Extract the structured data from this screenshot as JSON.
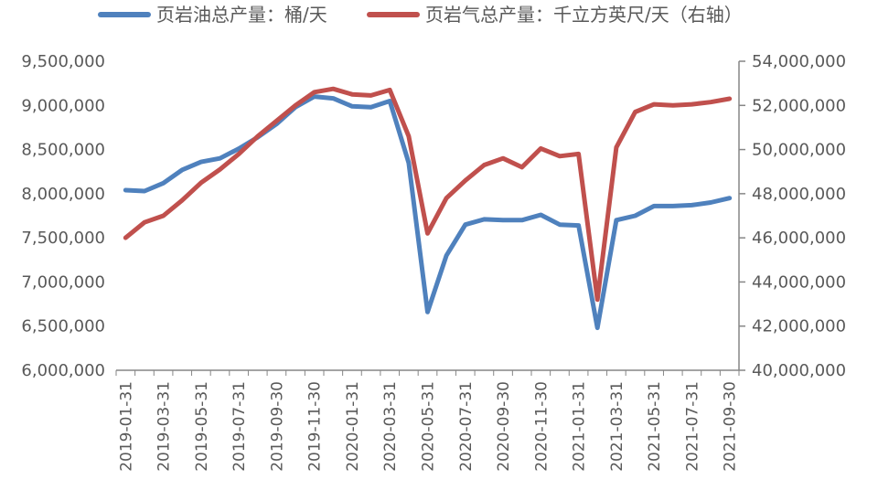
{
  "chart_data": {
    "type": "line",
    "title": "",
    "x": [
      "2019-01-31",
      "2019-02-28",
      "2019-03-31",
      "2019-04-30",
      "2019-05-31",
      "2019-06-30",
      "2019-07-31",
      "2019-08-31",
      "2019-09-30",
      "2019-10-31",
      "2019-11-30",
      "2019-12-31",
      "2020-01-31",
      "2020-02-29",
      "2020-03-31",
      "2020-04-30",
      "2020-05-31",
      "2020-06-30",
      "2020-07-31",
      "2020-08-31",
      "2020-09-30",
      "2020-10-31",
      "2020-11-30",
      "2020-12-31",
      "2021-01-31",
      "2021-02-28",
      "2021-03-31",
      "2021-04-30",
      "2021-05-31",
      "2021-06-30",
      "2021-07-31",
      "2021-08-31",
      "2021-09-30"
    ],
    "x_tick_labels": [
      "2019-01-31",
      "2019-03-31",
      "2019-05-31",
      "2019-07-31",
      "2019-09-30",
      "2019-11-30",
      "2020-01-31",
      "2020-03-31",
      "2020-05-31",
      "2020-07-31",
      "2020-09-30",
      "2020-11-30",
      "2021-01-31",
      "2021-03-31",
      "2021-05-31",
      "2021-07-31",
      "2021-09-30"
    ],
    "y_left": {
      "ylim": [
        6000000,
        9500000
      ],
      "ticks": [
        6000000,
        6500000,
        7000000,
        7500000,
        8000000,
        8500000,
        9000000,
        9500000
      ],
      "tick_labels": [
        "6,000,000",
        "6,500,000",
        "7,000,000",
        "7,500,000",
        "8,000,000",
        "8,500,000",
        "9,000,000",
        "9,500,000"
      ]
    },
    "y_right": {
      "ylim": [
        40000000,
        54000000
      ],
      "ticks": [
        40000000,
        42000000,
        44000000,
        46000000,
        48000000,
        50000000,
        52000000,
        54000000
      ],
      "tick_labels": [
        "40,000,000",
        "42,000,000",
        "44,000,000",
        "46,000,000",
        "48,000,000",
        "50,000,000",
        "52,000,000",
        "54,000,000"
      ]
    },
    "series": [
      {
        "name": "页岩油总产量：桶/天",
        "axis": "left",
        "color": "#4F81BD",
        "values": [
          8040000,
          8030000,
          8120000,
          8270000,
          8360000,
          8400000,
          8510000,
          8640000,
          8790000,
          8980000,
          9100000,
          9080000,
          8990000,
          8980000,
          9050000,
          8350000,
          6660000,
          7300000,
          7650000,
          7710000,
          7700000,
          7700000,
          7760000,
          7650000,
          7640000,
          6480000,
          7700000,
          7750000,
          7860000,
          7860000,
          7870000,
          7900000,
          7950000
        ]
      },
      {
        "name": "页岩气总产量：千立方英尺/天（右轴）",
        "axis": "right",
        "color": "#C0504D",
        "values": [
          46000000,
          46700000,
          47000000,
          47700000,
          48500000,
          49100000,
          49800000,
          50600000,
          51300000,
          52000000,
          52600000,
          52750000,
          52500000,
          52450000,
          52700000,
          50600000,
          46200000,
          47800000,
          48600000,
          49300000,
          49600000,
          49200000,
          50050000,
          49700000,
          49800000,
          43200000,
          50100000,
          51700000,
          52050000,
          52000000,
          52050000,
          52150000,
          52300000
        ]
      }
    ],
    "legend_position": "top",
    "grid": false
  }
}
